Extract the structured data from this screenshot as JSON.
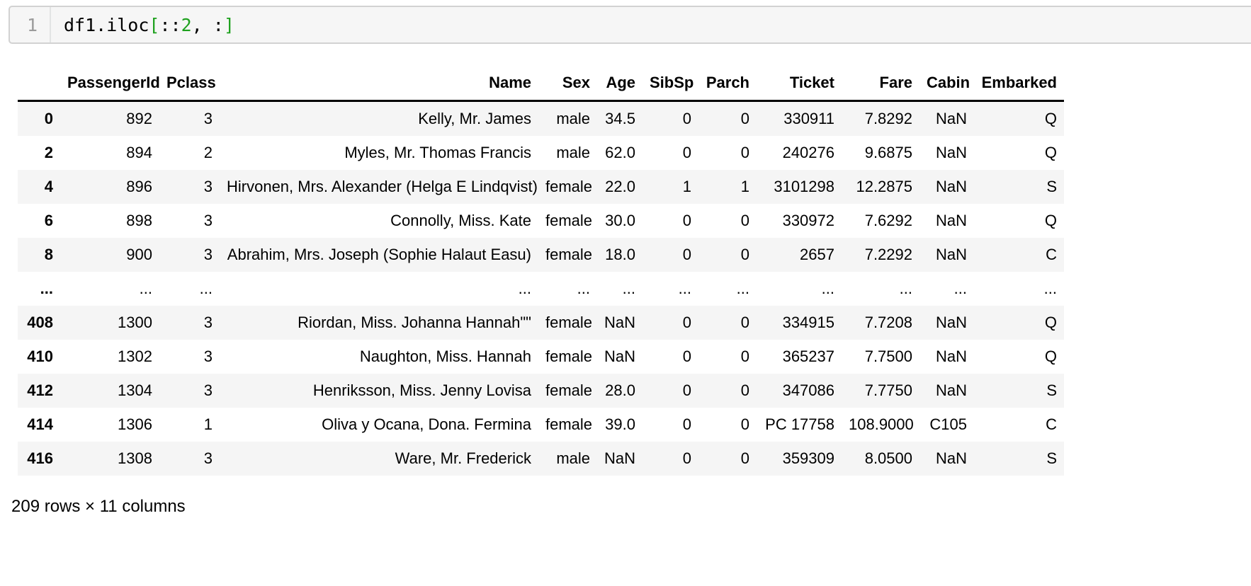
{
  "colors": {
    "syntax_green": "#1ea11e",
    "syntax_default": "#000000",
    "row_stripe": "#f5f5f5",
    "cell_background": "#f6f6f6"
  },
  "code_cell": {
    "line_number": "1",
    "source_text": "df1.iloc[::2, :]",
    "tokens": [
      {
        "text": "df1.iloc",
        "style": "syntax_default"
      },
      {
        "text": "[",
        "style": "syntax_green"
      },
      {
        "text": "::",
        "style": "syntax_default"
      },
      {
        "text": "2",
        "style": "syntax_green"
      },
      {
        "text": ", :",
        "style": "syntax_default"
      },
      {
        "text": "]",
        "style": "syntax_green"
      }
    ]
  },
  "table": {
    "index_header": "",
    "columns": [
      "PassengerId",
      "Pclass",
      "Name",
      "Sex",
      "Age",
      "SibSp",
      "Parch",
      "Ticket",
      "Fare",
      "Cabin",
      "Embarked"
    ],
    "rows": [
      {
        "index": "0",
        "cells": [
          "892",
          "3",
          "Kelly, Mr. James",
          "male",
          "34.5",
          "0",
          "0",
          "330911",
          "7.8292",
          "NaN",
          "Q"
        ]
      },
      {
        "index": "2",
        "cells": [
          "894",
          "2",
          "Myles, Mr. Thomas Francis",
          "male",
          "62.0",
          "0",
          "0",
          "240276",
          "9.6875",
          "NaN",
          "Q"
        ]
      },
      {
        "index": "4",
        "cells": [
          "896",
          "3",
          "Hirvonen, Mrs. Alexander (Helga E Lindqvist)",
          "female",
          "22.0",
          "1",
          "1",
          "3101298",
          "12.2875",
          "NaN",
          "S"
        ]
      },
      {
        "index": "6",
        "cells": [
          "898",
          "3",
          "Connolly, Miss. Kate",
          "female",
          "30.0",
          "0",
          "0",
          "330972",
          "7.6292",
          "NaN",
          "Q"
        ]
      },
      {
        "index": "8",
        "cells": [
          "900",
          "3",
          "Abrahim, Mrs. Joseph (Sophie Halaut Easu)",
          "female",
          "18.0",
          "0",
          "0",
          "2657",
          "7.2292",
          "NaN",
          "C"
        ]
      },
      {
        "index": "...",
        "cells": [
          "...",
          "...",
          "...",
          "...",
          "...",
          "...",
          "...",
          "...",
          "...",
          "...",
          "..."
        ]
      },
      {
        "index": "408",
        "cells": [
          "1300",
          "3",
          "Riordan, Miss. Johanna Hannah\"\"",
          "female",
          "NaN",
          "0",
          "0",
          "334915",
          "7.7208",
          "NaN",
          "Q"
        ]
      },
      {
        "index": "410",
        "cells": [
          "1302",
          "3",
          "Naughton, Miss. Hannah",
          "female",
          "NaN",
          "0",
          "0",
          "365237",
          "7.7500",
          "NaN",
          "Q"
        ]
      },
      {
        "index": "412",
        "cells": [
          "1304",
          "3",
          "Henriksson, Miss. Jenny Lovisa",
          "female",
          "28.0",
          "0",
          "0",
          "347086",
          "7.7750",
          "NaN",
          "S"
        ]
      },
      {
        "index": "414",
        "cells": [
          "1306",
          "1",
          "Oliva y Ocana, Dona. Fermina",
          "female",
          "39.0",
          "0",
          "0",
          "PC 17758",
          "108.9000",
          "C105",
          "C"
        ]
      },
      {
        "index": "416",
        "cells": [
          "1308",
          "3",
          "Ware, Mr. Frederick",
          "male",
          "NaN",
          "0",
          "0",
          "359309",
          "8.0500",
          "NaN",
          "S"
        ]
      }
    ],
    "footer": "209 rows × 11 columns"
  }
}
